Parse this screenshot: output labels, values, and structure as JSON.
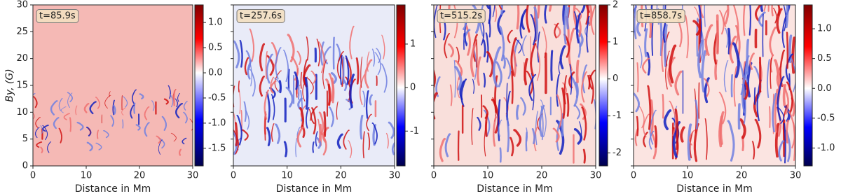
{
  "chart_data": [
    {
      "type": "heatmap",
      "annotation": "t=85.9s",
      "xlabel": "Distance in Mm",
      "ylabel": "By, (G)",
      "xlim": [
        0,
        30
      ],
      "xticks": [
        0,
        10,
        20,
        30
      ],
      "ylim": [
        0,
        30
      ],
      "yticks": [
        0,
        5,
        10,
        15,
        20,
        25,
        30
      ],
      "show_ytick_labels": true,
      "colormap": "seismic",
      "clim": [
        -1.85,
        1.35
      ],
      "cticks": [
        {
          "value": 1,
          "label": "1.0"
        },
        0.5,
        {
          "value": 0,
          "label": "0.0"
        },
        -0.5,
        {
          "value": -1,
          "label": "-1.0"
        },
        -1.5
      ]
    },
    {
      "type": "heatmap",
      "annotation": "t=257.6s",
      "xlabel": "Distance in Mm",
      "xlim": [
        0,
        30
      ],
      "xticks": [
        0,
        10,
        20,
        30
      ],
      "ylim": [
        0,
        30
      ],
      "yticks": [
        0,
        5,
        10,
        15,
        20,
        25,
        30
      ],
      "show_ytick_labels": false,
      "colormap": "seismic",
      "clim": [
        -1.8,
        1.9
      ],
      "cticks": [
        1,
        0,
        -1
      ]
    },
    {
      "type": "heatmap",
      "annotation": "t=515.2s",
      "xlabel": "Distance in Mm",
      "xlim": [
        0,
        30
      ],
      "xticks": [
        0,
        10,
        20,
        30
      ],
      "ylim": [
        0,
        30
      ],
      "yticks": [
        0,
        5,
        10,
        15,
        20,
        25,
        30
      ],
      "show_ytick_labels": false,
      "colormap": "seismic",
      "clim": [
        -2.35,
        2.0
      ],
      "cticks": [
        2,
        1,
        0,
        -1,
        -2
      ]
    },
    {
      "type": "heatmap",
      "annotation": "t=858.7s",
      "xlabel": "Distance in Mm",
      "xlim": [
        0,
        30
      ],
      "xticks": [
        0,
        10,
        20,
        30
      ],
      "ylim": [
        0,
        30
      ],
      "yticks": [
        0,
        5,
        10,
        15,
        20,
        25,
        30
      ],
      "show_ytick_labels": false,
      "colormap": "seismic",
      "clim": [
        -1.3,
        1.4
      ],
      "cticks": [
        {
          "value": 1,
          "label": "1.0"
        },
        0.5,
        {
          "value": 0,
          "label": "0.0"
        },
        -0.5,
        {
          "value": -1,
          "label": "-1.0"
        }
      ]
    }
  ]
}
